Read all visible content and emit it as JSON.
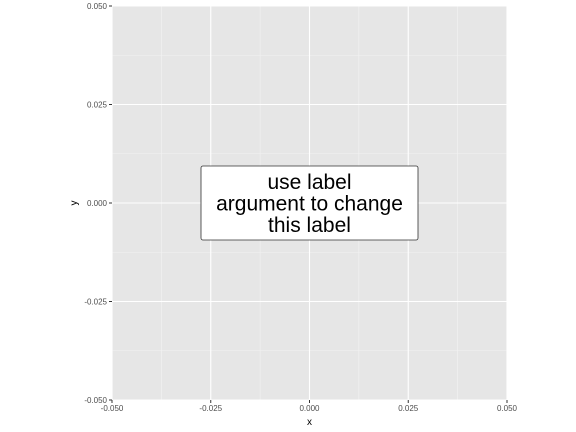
{
  "chart_data": {
    "type": "scatter",
    "xlabel": "x",
    "ylabel": "y",
    "xlim": [
      -0.05,
      0.05
    ],
    "ylim": [
      -0.05,
      0.05
    ],
    "x_ticks": [
      {
        "value": -0.05,
        "label": "-0.050"
      },
      {
        "value": -0.025,
        "label": "-0.025"
      },
      {
        "value": 0.0,
        "label": "0.000"
      },
      {
        "value": 0.025,
        "label": "0.025"
      },
      {
        "value": 0.05,
        "label": "0.050"
      }
    ],
    "y_ticks": [
      {
        "value": -0.05,
        "label": "-0.050"
      },
      {
        "value": -0.025,
        "label": "-0.025"
      },
      {
        "value": 0.0,
        "label": "0.000"
      },
      {
        "value": 0.025,
        "label": "0.025"
      },
      {
        "value": 0.05,
        "label": "0.050"
      }
    ],
    "minor_breaks_x": [
      -0.0375,
      -0.0125,
      0.0125,
      0.0375
    ],
    "minor_breaks_y": [
      -0.0375,
      -0.0125,
      0.0125,
      0.0375
    ],
    "grid": true,
    "legend": "none",
    "annotation": {
      "x": 0.0,
      "y": 0.0,
      "lines": [
        "use label",
        "argument to change",
        "this label"
      ]
    },
    "colors": {
      "panel_background": "#e6e6e6",
      "grid_major": "#ffffff",
      "grid_minor": "#f2f2f2",
      "label_fill": "#ffffff",
      "label_border": "#333333"
    }
  }
}
